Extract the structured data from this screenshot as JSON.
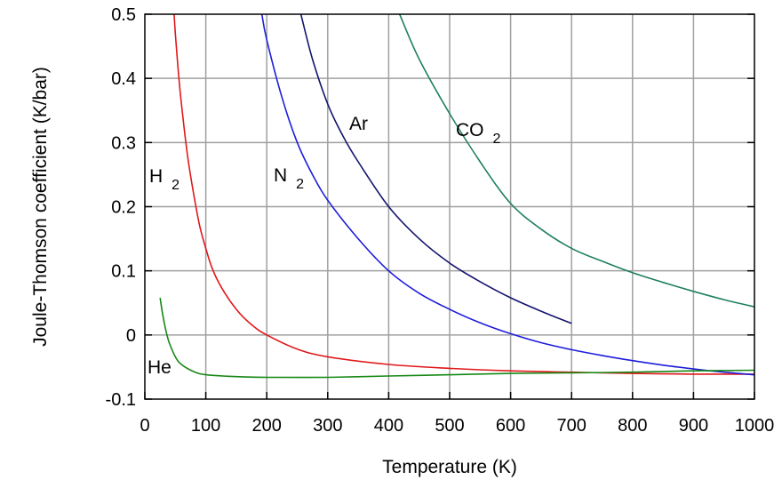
{
  "chart_data": {
    "type": "line",
    "title": "",
    "xlabel": "Temperature (K)",
    "ylabel": "Joule-Thomson coefficient (K/bar)",
    "xlim": [
      0,
      1000
    ],
    "ylim": [
      -0.1,
      0.5
    ],
    "xticks": [
      "0",
      "100",
      "200",
      "300",
      "400",
      "500",
      "600",
      "700",
      "800",
      "900",
      "1000"
    ],
    "yticks": [
      "-0.1",
      "0",
      "0.1",
      "0.2",
      "0.3",
      "0.4",
      "0.5"
    ],
    "grid": true,
    "legend": "none",
    "series": [
      {
        "name": "H",
        "subscript": "2",
        "color": "#e0181b",
        "x": [
          48,
          50,
          55,
          60,
          70,
          80,
          90,
          100,
          110,
          125,
          150,
          175,
          200,
          250,
          300,
          400,
          500,
          600,
          700,
          800,
          900,
          1000
        ],
        "y": [
          0.5,
          0.47,
          0.41,
          0.36,
          0.28,
          0.22,
          0.17,
          0.135,
          0.105,
          0.075,
          0.04,
          0.016,
          0.0,
          -0.022,
          -0.034,
          -0.046,
          -0.052,
          -0.056,
          -0.058,
          -0.06,
          -0.061,
          -0.061
        ]
      },
      {
        "name": "N",
        "subscript": "2",
        "color": "#1d1ddb",
        "x": [
          192,
          200,
          225,
          250,
          275,
          300,
          350,
          400,
          450,
          500,
          550,
          600,
          650,
          700,
          750,
          800,
          850,
          900,
          950,
          1000
        ],
        "y": [
          0.5,
          0.46,
          0.37,
          0.3,
          0.25,
          0.21,
          0.15,
          0.1,
          0.065,
          0.04,
          0.019,
          0.002,
          -0.012,
          -0.023,
          -0.032,
          -0.04,
          -0.047,
          -0.053,
          -0.058,
          -0.062
        ]
      },
      {
        "name": "Ar",
        "subscript": "",
        "color": "#14146e",
        "x": [
          256,
          275,
          300,
          325,
          350,
          400,
          450,
          500,
          550,
          600,
          650,
          700
        ],
        "y": [
          0.5,
          0.43,
          0.36,
          0.31,
          0.27,
          0.2,
          0.15,
          0.112,
          0.083,
          0.058,
          0.037,
          0.018
        ]
      },
      {
        "name": "CO",
        "subscript": "2",
        "color": "#1f7f62",
        "x": [
          418,
          450,
          500,
          550,
          600,
          650,
          700,
          750,
          800,
          850,
          900,
          950,
          1000
        ],
        "y": [
          0.5,
          0.43,
          0.345,
          0.27,
          0.205,
          0.165,
          0.135,
          0.115,
          0.097,
          0.082,
          0.068,
          0.055,
          0.044
        ]
      },
      {
        "name": "He",
        "subscript": "",
        "color": "#168816",
        "x": [
          25,
          30,
          35,
          40,
          50,
          60,
          80,
          100,
          150,
          200,
          300,
          400,
          500,
          600,
          700,
          800,
          900,
          1000
        ],
        "y": [
          0.058,
          0.028,
          0.005,
          -0.012,
          -0.034,
          -0.046,
          -0.057,
          -0.062,
          -0.065,
          -0.066,
          -0.066,
          -0.064,
          -0.062,
          -0.06,
          -0.059,
          -0.058,
          -0.056,
          -0.055
        ]
      }
    ]
  }
}
